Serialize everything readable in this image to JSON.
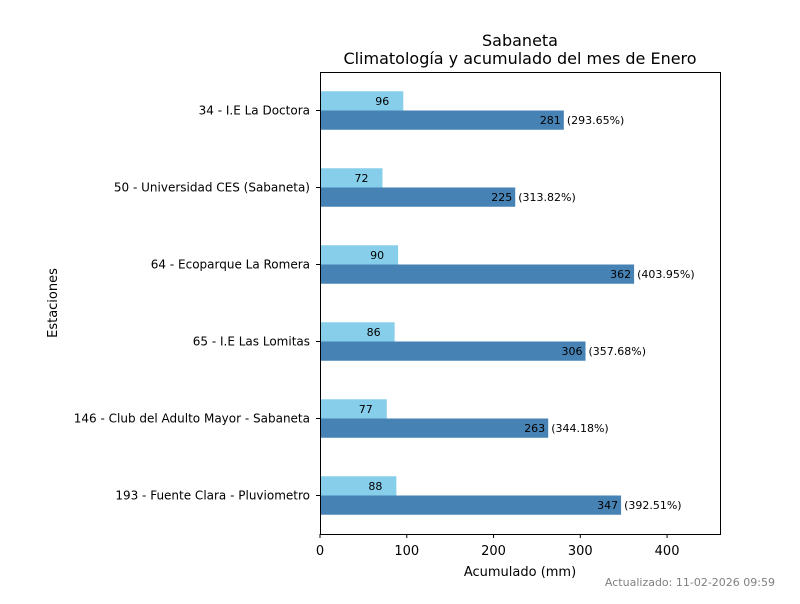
{
  "chart_data": {
    "type": "bar",
    "orientation": "horizontal",
    "title": "Sabaneta",
    "subtitle": "Climatología y acumulado del mes de Enero",
    "xlabel": "Acumulado (mm)",
    "ylabel": "Estaciones",
    "xlim": [
      0,
      461
    ],
    "xticks": [
      0,
      100,
      200,
      300,
      400
    ],
    "grid": false,
    "categories": [
      "34 - I.E La Doctora",
      "50 - Universidad CES (Sabaneta)",
      "64 - Ecoparque La Romera",
      "65 - I.E Las Lomitas",
      "146 - Club del Adulto Mayor - Sabaneta",
      "193 - Fuente Clara - Pluviometro"
    ],
    "series": [
      {
        "name": "Climatología",
        "color": "#87CEEB",
        "values": [
          96,
          72,
          90,
          86,
          77,
          88
        ]
      },
      {
        "name": "Acumulado",
        "color": "#4682B4",
        "values": [
          281,
          225,
          362,
          306,
          263,
          347
        ],
        "annotations": [
          "(293.65%)",
          "(313.82%)",
          "(403.95%)",
          "(357.68%)",
          "(344.18%)",
          "(392.51%)"
        ]
      }
    ]
  },
  "footer": "Actualizado: 11-02-2026 09:59"
}
